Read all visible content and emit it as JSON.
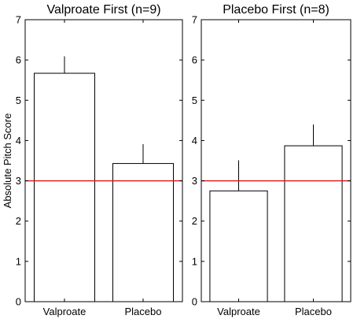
{
  "figure": {
    "ylabel": "Absolute Pitch Score"
  },
  "chart_data": [
    {
      "type": "bar",
      "title": "Valproate First (n=9)",
      "categories": [
        "Valproate",
        "Placebo"
      ],
      "values": [
        5.67,
        3.43
      ],
      "errors": [
        0.42,
        0.48
      ],
      "ylim": [
        0,
        7
      ],
      "yticks": [
        "0",
        "1",
        "2",
        "3",
        "4",
        "5",
        "6",
        "7"
      ],
      "ylabel": "Absolute Pitch Score",
      "reference_line": {
        "y": 3,
        "color": "#e01010"
      },
      "grid": false
    },
    {
      "type": "bar",
      "title": "Placebo First (n=8)",
      "categories": [
        "Valproate",
        "Placebo"
      ],
      "values": [
        2.75,
        3.87
      ],
      "errors": [
        0.76,
        0.53
      ],
      "ylim": [
        0,
        7
      ],
      "yticks": [
        "0",
        "1",
        "2",
        "3",
        "4",
        "5",
        "6",
        "7"
      ],
      "reference_line": {
        "y": 3,
        "color": "#e01010"
      },
      "grid": false
    }
  ]
}
